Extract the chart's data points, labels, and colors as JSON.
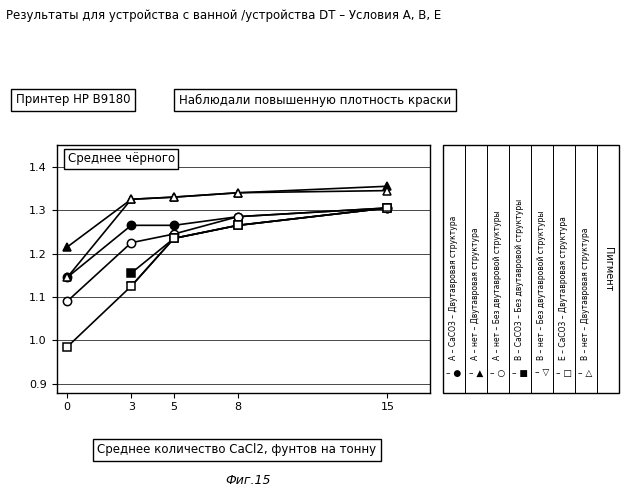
{
  "title": "Результаты для устройства с ванной /устройства DT – Условия А, В, Е",
  "box1_text": "Принтер HP B9180",
  "box2_text": "Наблюдали повышенную плотность краски",
  "ylabel_box": "Среднее чёрного",
  "xlabel_box": "Среднее количество CaCl2, фунтов на тонну",
  "caption": "Фиг.15",
  "xlim": [
    -0.5,
    17
  ],
  "ylim": [
    0.88,
    1.45
  ],
  "yticks": [
    0.9,
    1.0,
    1.1,
    1.2,
    1.3,
    1.4
  ],
  "xticks": [
    0,
    3,
    5,
    8,
    15
  ],
  "x": [
    0,
    3,
    5,
    8,
    15
  ],
  "series": [
    {
      "label": "●  A – CaCO3 – Двутавровая структура",
      "values": [
        1.145,
        1.265,
        1.265,
        1.285,
        1.305
      ],
      "marker": "o",
      "fillstyle": "full"
    },
    {
      "label": "▲  A – нет – Двутавровая структура",
      "values": [
        1.215,
        1.325,
        1.33,
        1.34,
        1.355
      ],
      "marker": "^",
      "fillstyle": "full"
    },
    {
      "label": "○  A – нет – Без двутавровой структуры",
      "values": [
        1.09,
        1.225,
        1.245,
        1.285,
        1.305
      ],
      "marker": "o",
      "fillstyle": "none"
    },
    {
      "label": "■  B – CaCO3 – Без двутавровой структуры",
      "values": [
        null,
        1.155,
        1.235,
        1.265,
        1.305
      ],
      "marker": "s",
      "fillstyle": "full"
    },
    {
      "label": "▽  B – нет – Без двутавровой структуры",
      "values": [
        null,
        1.125,
        1.235,
        1.265,
        1.305
      ],
      "marker": "v",
      "fillstyle": "none"
    },
    {
      "label": "□  E – CaCO3 – Двутавровая структура",
      "values": [
        0.985,
        1.125,
        1.235,
        1.265,
        1.305
      ],
      "marker": "s",
      "fillstyle": "none"
    },
    {
      "label": "△  B – нет – Двутавровая структура",
      "values": [
        1.145,
        1.325,
        1.33,
        1.34,
        1.345
      ],
      "marker": "^",
      "fillstyle": "none"
    }
  ],
  "legend_symbols": [
    "●",
    "▲",
    "○",
    "■",
    "▽",
    "□",
    "△"
  ],
  "legend_texts": [
    "A – CaCO3 – Двутавровая структура",
    "A – нет – Двутавровая структура",
    "A – нет – Без двутавровой структуры",
    "B – CaCO3 – Без двутавровой структуры",
    "B – нет – Без двутавровой структуры",
    "E – CaCO3 – Двутавровая структура",
    "B – нет – Двутавровая структура"
  ],
  "pigment_header": "Пигмент",
  "dvutavr_header": "Двутавровая структура"
}
